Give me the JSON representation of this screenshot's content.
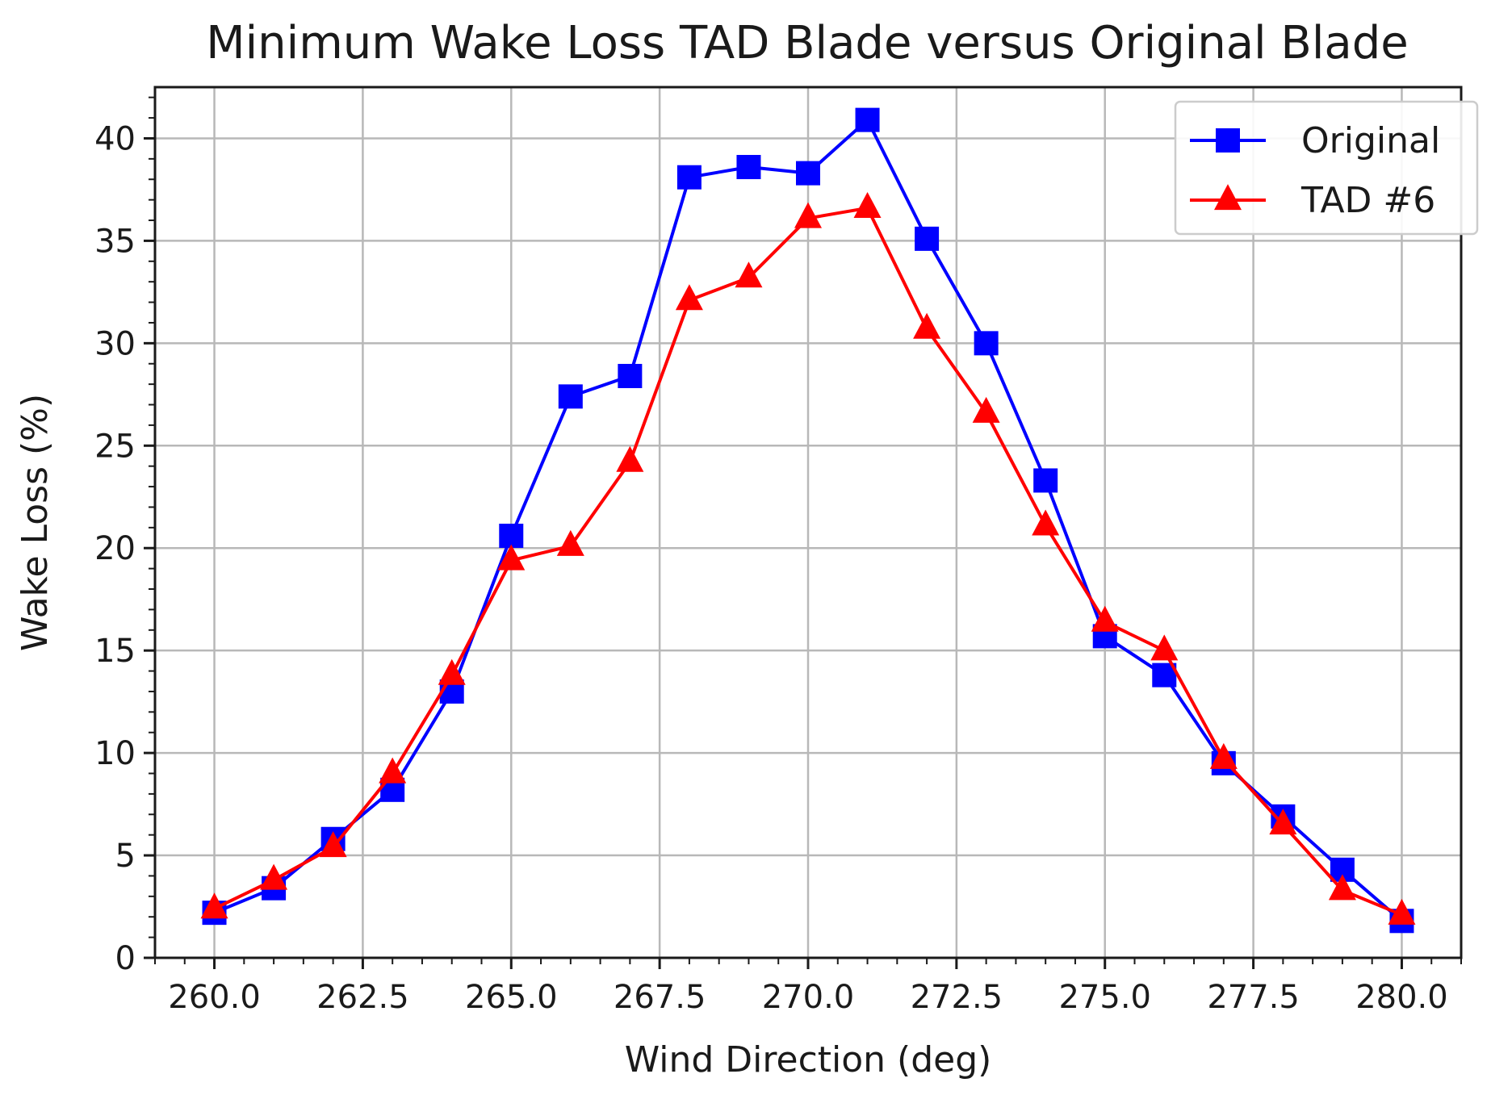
{
  "chart_data": {
    "type": "line",
    "title": "Minimum Wake Loss TAD Blade versus Original Blade",
    "xlabel": "Wind Direction (deg)",
    "ylabel": "Wake Loss (%)",
    "xlim": [
      259.0,
      281.0
    ],
    "ylim": [
      0,
      42.5
    ],
    "grid": true,
    "legend_position": "top-right",
    "x": [
      260,
      261,
      262,
      263,
      264,
      265,
      266,
      267,
      268,
      269,
      270,
      271,
      272,
      273,
      274,
      275,
      276,
      277,
      278,
      279,
      280
    ],
    "x_ticks": [
      260.0,
      262.5,
      265.0,
      267.5,
      270.0,
      272.5,
      275.0,
      277.5,
      280.0
    ],
    "x_tick_labels": [
      "260.0",
      "262.5",
      "265.0",
      "267.5",
      "270.0",
      "272.5",
      "275.0",
      "277.5",
      "280.0"
    ],
    "y_ticks": [
      0,
      5,
      10,
      15,
      20,
      25,
      30,
      35,
      40
    ],
    "y_tick_labels": [
      "0",
      "5",
      "10",
      "15",
      "20",
      "25",
      "30",
      "35",
      "40"
    ],
    "series": [
      {
        "name": "Original",
        "color": "#0000ff",
        "marker": "square",
        "values": [
          2.2,
          3.4,
          5.8,
          8.2,
          13.0,
          20.6,
          27.4,
          28.4,
          38.1,
          38.6,
          38.3,
          40.9,
          35.1,
          30.0,
          23.3,
          15.7,
          13.8,
          9.5,
          6.9,
          4.3,
          1.8
        ]
      },
      {
        "name": "TAD #6",
        "color": "#ff0000",
        "marker": "triangle",
        "values": [
          2.4,
          3.8,
          5.4,
          9.0,
          13.8,
          19.4,
          20.1,
          24.2,
          32.1,
          33.2,
          36.1,
          36.6,
          30.7,
          26.6,
          21.1,
          16.4,
          15.0,
          9.7,
          6.5,
          3.3,
          2.1
        ]
      }
    ]
  }
}
